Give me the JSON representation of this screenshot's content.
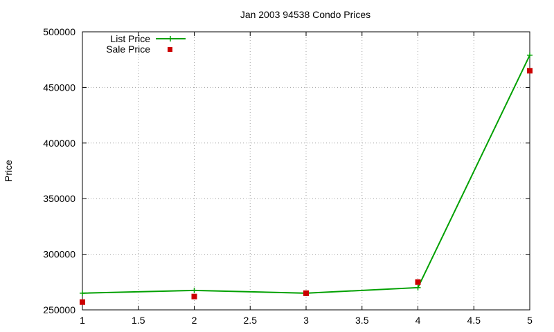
{
  "chart_data": {
    "type": "line",
    "title": "Jan 2003 94538 Condo Prices",
    "xlabel": "",
    "ylabel": "Price",
    "xlim": [
      1,
      5
    ],
    "ylim": [
      250000,
      500000
    ],
    "x_ticks": [
      "1",
      "1.5",
      "2",
      "2.5",
      "3",
      "3.5",
      "4",
      "4.5",
      "5"
    ],
    "y_ticks": [
      "250000",
      "300000",
      "350000",
      "400000",
      "450000",
      "500000"
    ],
    "grid": true,
    "legend_position": "top-left",
    "series": [
      {
        "name": "List Price",
        "style": "line-with-plus-markers",
        "color": "#00a000",
        "x": [
          1,
          2,
          3,
          4,
          5
        ],
        "y": [
          265000,
          267500,
          265000,
          270000,
          479000
        ]
      },
      {
        "name": "Sale Price",
        "style": "square-markers",
        "color": "#cc0000",
        "x": [
          1,
          2,
          3,
          4,
          5
        ],
        "y": [
          257000,
          262000,
          265000,
          275000,
          465000
        ]
      }
    ]
  }
}
